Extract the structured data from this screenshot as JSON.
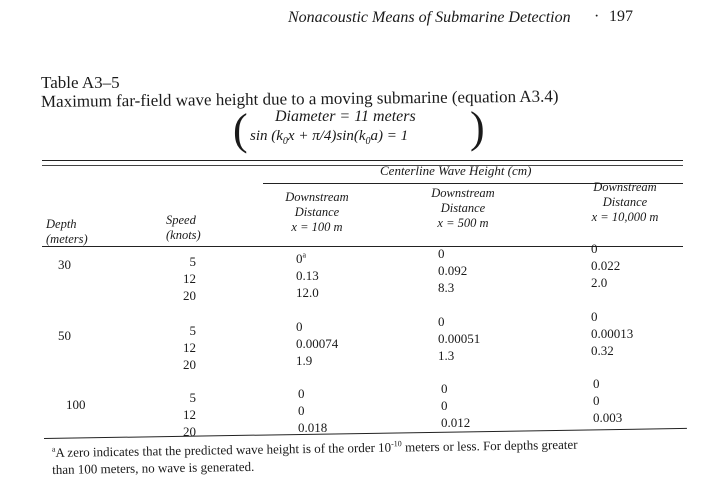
{
  "page_header": {
    "title": "Nonacoustic Means of Submarine Detection",
    "separator": "·",
    "page_number": "197"
  },
  "table": {
    "label": "Table A3–5",
    "caption": "Maximum far-field wave height due to a moving submarine (equation A3.4)",
    "condition_diameter": "Diameter = 11 meters",
    "condition_equation": {
      "pre": "sin (k",
      "sub1": "0",
      "mid": "x + π/4)sin(k",
      "sub2": "0",
      "post": "a) = 1"
    },
    "spanner_heading": "Centerline Wave Height (cm)",
    "stub_depth": {
      "line1": "Depth",
      "line2": "(meters)"
    },
    "stub_speed": {
      "line1": "Speed",
      "line2": "(knots)"
    },
    "columns": [
      {
        "line1": "Downstream",
        "line2": "Distance",
        "line3": "x = 100 m"
      },
      {
        "line1": "Downstream",
        "line2": "Distance",
        "line3": "x = 500 m"
      },
      {
        "line1": "Downstream",
        "line2": "Distance",
        "line3": "x = 10,000 m"
      }
    ],
    "groups": [
      {
        "depth": "30",
        "speeds": [
          "5",
          "12",
          "20"
        ],
        "col1": [
          "0",
          "0.13",
          "12.0"
        ],
        "col1_note": "a",
        "col2": [
          "0",
          "0.092",
          "8.3"
        ],
        "col3": [
          "0",
          "0.022",
          "2.0"
        ]
      },
      {
        "depth": "50",
        "speeds": [
          "5",
          "12",
          "20"
        ],
        "col1": [
          "0",
          "0.00074",
          "1.9"
        ],
        "col2": [
          "0",
          "0.00051",
          "1.3"
        ],
        "col3": [
          "0",
          "0.00013",
          "0.32"
        ]
      },
      {
        "depth": "100",
        "speeds": [
          "5",
          "12",
          "20"
        ],
        "col1": [
          "0",
          "0",
          "0.018"
        ],
        "col2": [
          "0",
          "0",
          "0.012"
        ],
        "col3": [
          "0",
          "0",
          "0.003"
        ]
      }
    ],
    "footnote": {
      "marker": "a",
      "text_before": "A zero indicates that the predicted wave height is of the order 10",
      "exponent": "-10",
      "text_after": " meters or less. For depths greater",
      "line2": "than 100 meters, no wave is generated."
    }
  }
}
